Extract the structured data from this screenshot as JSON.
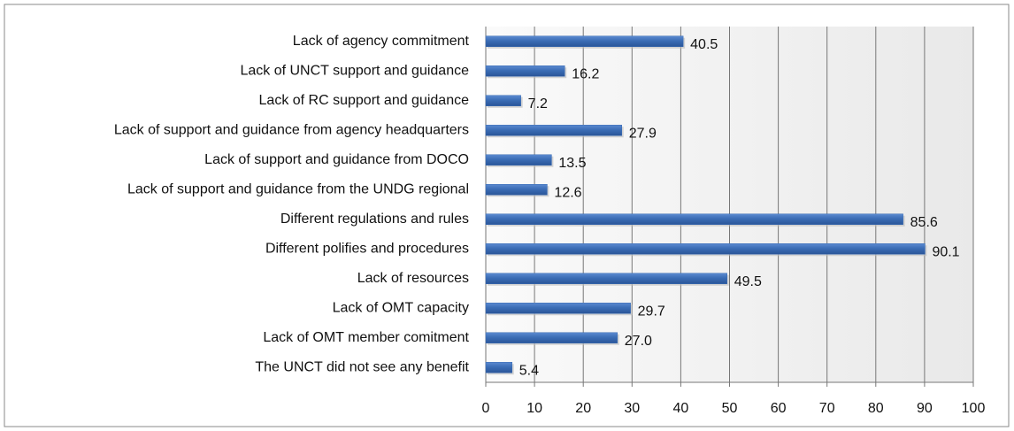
{
  "chart_data": {
    "type": "bar",
    "orientation": "horizontal",
    "categories": [
      "Lack of agency commitment",
      "Lack of UNCT support and guidance",
      "Lack of RC support and guidance",
      "Lack of support and guidance from agency headquarters",
      "Lack of support and guidance from DOCO",
      "Lack of support and guidance from the UNDG regional",
      "Different regulations and rules",
      "Different polifies and procedures",
      "Lack of resources",
      "Lack of OMT capacity",
      "Lack of OMT member comitment",
      "The UNCT did not see any benefit"
    ],
    "values": [
      40.5,
      16.2,
      7.2,
      27.9,
      13.5,
      12.6,
      85.6,
      90.1,
      49.5,
      29.7,
      27.0,
      5.4
    ],
    "value_labels": [
      "40.5",
      "16.2",
      "7.2",
      "27.9",
      "13.5",
      "12.6",
      "85.6",
      "90.1",
      "49.5",
      "29.7",
      "27.0",
      "5.4"
    ],
    "color": "#3b6db5",
    "xlim": [
      0,
      100
    ],
    "xticks": [
      0,
      10,
      20,
      30,
      40,
      50,
      60,
      70,
      80,
      90,
      100
    ],
    "grid": true
  }
}
